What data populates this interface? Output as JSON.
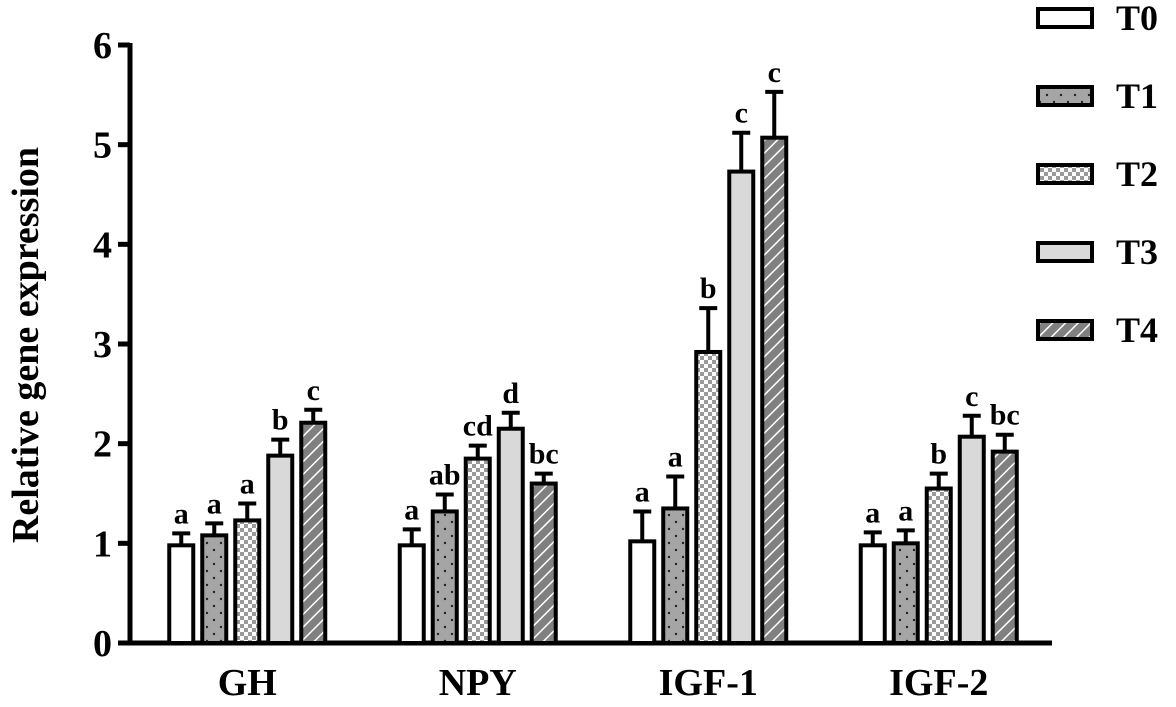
{
  "chart_data": {
    "type": "bar",
    "ylabel": "Relative gene expression",
    "xlabel": "",
    "ylim": [
      0,
      6
    ],
    "yticks": [
      "0",
      "1",
      "2",
      "3",
      "4",
      "5",
      "6"
    ],
    "grid": false,
    "legend_position": "top-right",
    "categories": [
      "GH",
      "NPY",
      "IGF-1",
      "IGF-2"
    ],
    "series": [
      {
        "name": "T0",
        "pattern": "white",
        "values": [
          0.98,
          0.98,
          1.02,
          0.98
        ],
        "errors": [
          0.12,
          0.16,
          0.3,
          0.13
        ],
        "labels": [
          "a",
          "a",
          "a",
          "a"
        ]
      },
      {
        "name": "T1",
        "pattern": "dots",
        "values": [
          1.08,
          1.32,
          1.35,
          1.0
        ],
        "errors": [
          0.12,
          0.17,
          0.32,
          0.13
        ],
        "labels": [
          "a",
          "ab",
          "a",
          "a"
        ]
      },
      {
        "name": "T2",
        "pattern": "checker",
        "values": [
          1.23,
          1.85,
          2.92,
          1.55
        ],
        "errors": [
          0.17,
          0.13,
          0.44,
          0.15
        ],
        "labels": [
          "a",
          "cd",
          "b",
          "b"
        ]
      },
      {
        "name": "T3",
        "pattern": "light-gray",
        "values": [
          1.88,
          2.15,
          4.73,
          2.07
        ],
        "errors": [
          0.16,
          0.16,
          0.39,
          0.21
        ],
        "labels": [
          "b",
          "d",
          "c",
          "c"
        ]
      },
      {
        "name": "T4",
        "pattern": "hatch",
        "values": [
          2.21,
          1.6,
          5.07,
          1.92
        ],
        "errors": [
          0.13,
          0.1,
          0.46,
          0.17
        ],
        "labels": [
          "c",
          "bc",
          "c",
          "bc"
        ]
      }
    ],
    "colors": {
      "stroke": "#000000",
      "t1_fill": "#a5a5a5",
      "t3_fill": "#d9d9d9",
      "t4_fill": "#808080"
    }
  }
}
